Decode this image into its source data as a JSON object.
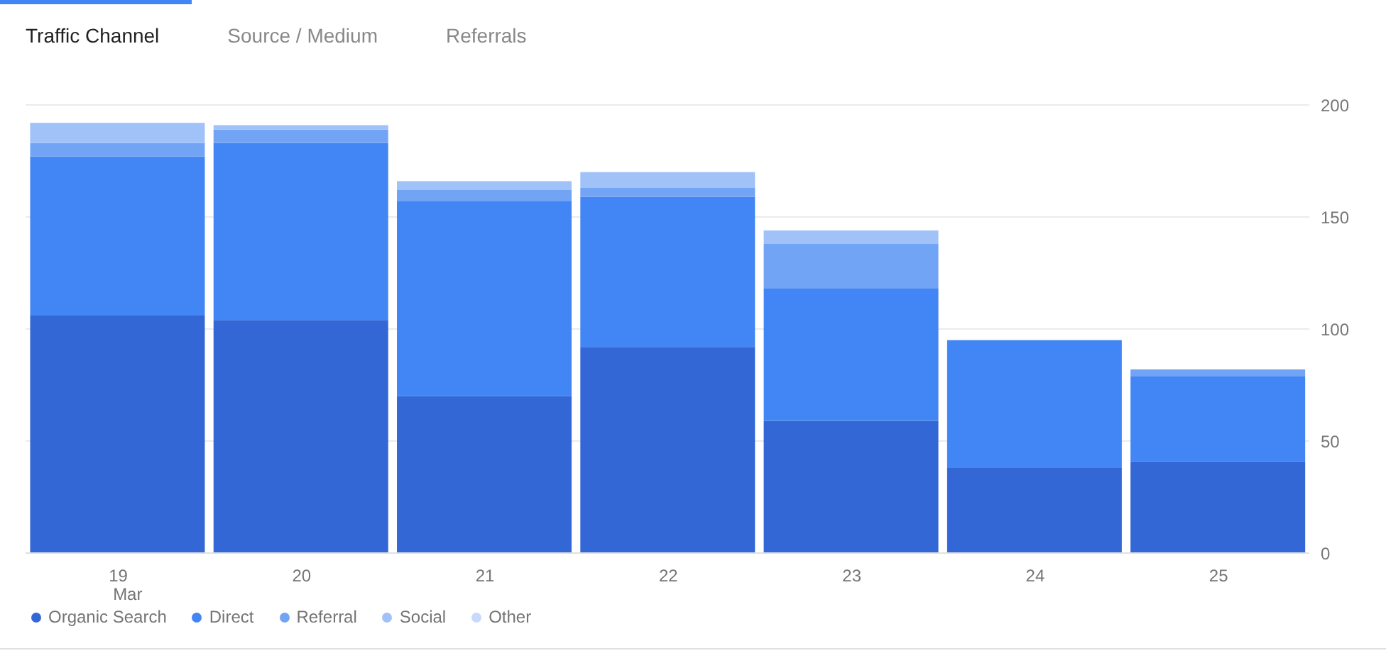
{
  "chart_data": {
    "type": "bar",
    "title": "Traffic Channel",
    "annotations": [
      "Source / Medium",
      "Referrals"
    ],
    "categories": [
      "19\nMar",
      "20",
      "21",
      "22",
      "23",
      "24",
      "25"
    ],
    "stacked": true,
    "series": [
      {
        "name": "Organic Search",
        "color": "#3367d6",
        "values": [
          106,
          104,
          70,
          92,
          59,
          38,
          41
        ]
      },
      {
        "name": "Direct",
        "color": "#4285f4",
        "values": [
          71,
          79,
          87,
          67,
          59,
          57,
          38
        ]
      },
      {
        "name": "Referral",
        "color": "#72a4f6",
        "values": [
          6,
          6,
          5,
          4,
          20,
          0,
          3
        ]
      },
      {
        "name": "Social",
        "color": "#a0c2f9",
        "values": [
          9,
          2,
          4,
          7,
          6,
          0,
          0
        ]
      },
      {
        "name": "Other",
        "color": "#c6dafc",
        "values": [
          0,
          0,
          0,
          0,
          0,
          0,
          0
        ]
      }
    ],
    "ylim": [
      0,
      200
    ],
    "yticks": [
      0,
      50,
      100,
      150,
      200
    ],
    "grid": "y",
    "legend": "bottom"
  }
}
